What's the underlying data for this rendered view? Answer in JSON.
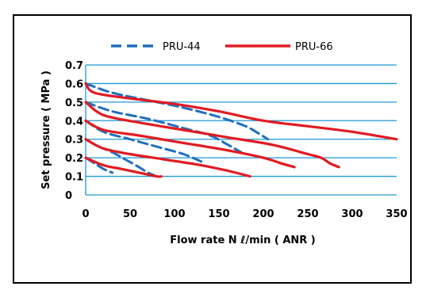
{
  "chart_data": {
    "type": "line",
    "title": "",
    "xlabel": "Flow rate N ℓ/min ( ANR )",
    "ylabel": "Set pressure ( MPa )",
    "xlim": [
      0,
      350
    ],
    "ylim": [
      0,
      0.7
    ],
    "x_ticks": [
      "0",
      "50",
      "100",
      "150",
      "200",
      "250",
      "300",
      "350"
    ],
    "y_ticks": [
      "0",
      "0.1",
      "0.2",
      "0.3",
      "0.4",
      "0.5",
      "0.6",
      "0.7"
    ],
    "grid": "horizontal",
    "legend_position": "top",
    "series": [
      {
        "name": "PRU-44",
        "color": "#1f6fbf",
        "style": "dashed",
        "curves": [
          {
            "x": [
              0,
              10,
              20,
              30
            ],
            "y": [
              0.2,
              0.17,
              0.14,
              0.12
            ]
          },
          {
            "x": [
              0,
              15,
              30,
              45,
              60,
              70,
              80
            ],
            "y": [
              0.3,
              0.26,
              0.23,
              0.19,
              0.15,
              0.12,
              0.1
            ]
          },
          {
            "x": [
              0,
              20,
              50,
              80,
              110,
              130
            ],
            "y": [
              0.4,
              0.34,
              0.3,
              0.26,
              0.22,
              0.18
            ]
          },
          {
            "x": [
              0,
              30,
              70,
              110,
              140,
              160,
              175
            ],
            "y": [
              0.5,
              0.45,
              0.41,
              0.36,
              0.32,
              0.27,
              0.23
            ]
          },
          {
            "x": [
              0,
              30,
              70,
              110,
              150,
              180,
              195,
              205
            ],
            "y": [
              0.6,
              0.55,
              0.51,
              0.47,
              0.42,
              0.37,
              0.33,
              0.3
            ]
          }
        ]
      },
      {
        "name": "PRU-66",
        "color": "#e11b22",
        "style": "solid",
        "curves": [
          {
            "x": [
              0,
              20,
              40,
              60,
              80,
              85
            ],
            "y": [
              0.2,
              0.16,
              0.14,
              0.12,
              0.1,
              0.1
            ]
          },
          {
            "x": [
              0,
              20,
              50,
              90,
              130,
              160,
              185
            ],
            "y": [
              0.3,
              0.25,
              0.22,
              0.19,
              0.16,
              0.13,
              0.1
            ]
          },
          {
            "x": [
              0,
              20,
              60,
              110,
              160,
              200,
              220,
              235
            ],
            "y": [
              0.4,
              0.35,
              0.32,
              0.28,
              0.24,
              0.2,
              0.17,
              0.15
            ]
          },
          {
            "x": [
              0,
              20,
              60,
              110,
              160,
              210,
              250,
              265,
              275,
              285
            ],
            "y": [
              0.5,
              0.43,
              0.39,
              0.35,
              0.31,
              0.27,
              0.22,
              0.2,
              0.17,
              0.15
            ]
          },
          {
            "x": [
              0,
              10,
              50,
              100,
              150,
              200,
              250,
              300,
              350
            ],
            "y": [
              0.6,
              0.55,
              0.52,
              0.49,
              0.45,
              0.4,
              0.37,
              0.34,
              0.3
            ]
          }
        ]
      }
    ]
  }
}
